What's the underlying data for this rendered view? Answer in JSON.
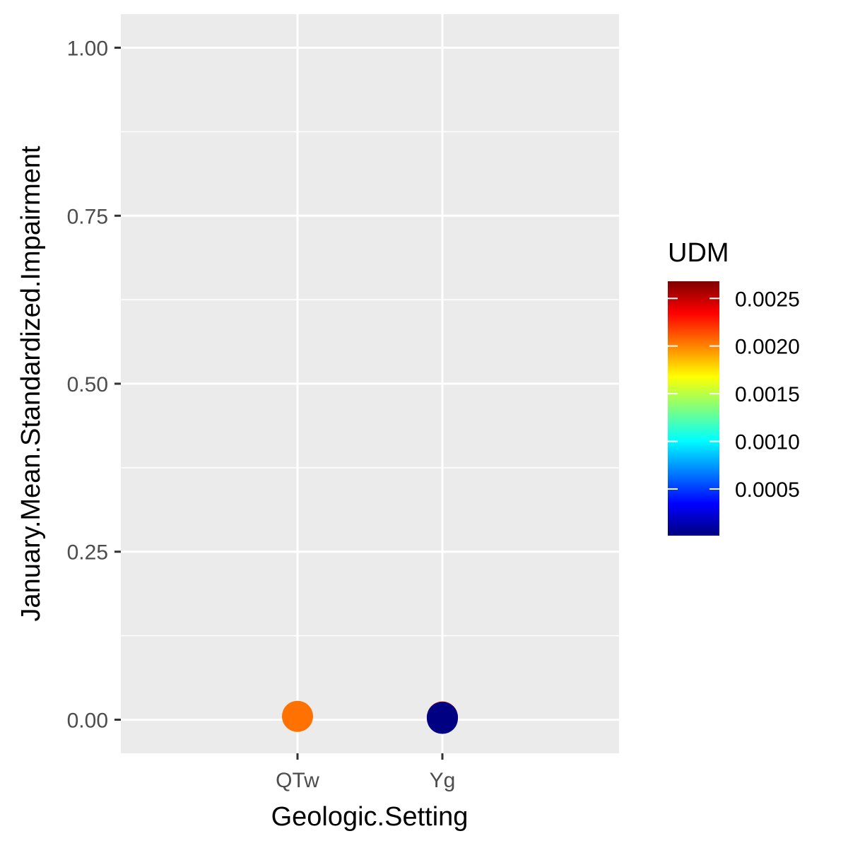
{
  "chart_data": {
    "type": "scatter",
    "xlabel": "Geologic.Setting",
    "ylabel": "January.Mean.Standardized.Impairment",
    "categories": [
      "QTw",
      "Yg"
    ],
    "ylim": [
      -0.05,
      1.05
    ],
    "y_ticks": [
      "0.00",
      "0.25",
      "0.50",
      "0.75",
      "1.00"
    ],
    "y_tick_values": [
      0,
      0.25,
      0.5,
      0.75,
      1.0
    ],
    "grid": true,
    "legend_position": "right",
    "points": [
      {
        "x": "QTw",
        "y": 0.005,
        "color_value": 0.00205
      },
      {
        "x": "Yg",
        "y": 0.004,
        "color_value": 0.0027
      },
      {
        "x": "Yg",
        "y": 0.003,
        "color_value": 0.0001
      },
      {
        "x": "Yg",
        "y": 0.002,
        "color_value": 2e-05
      }
    ],
    "color_scale": {
      "title": "UDM",
      "min": 1e-05,
      "max": 0.00268,
      "ticks": [
        "0.0005",
        "0.0010",
        "0.0015",
        "0.0020",
        "0.0025"
      ],
      "tick_values": [
        0.0005,
        0.001,
        0.0015,
        0.002,
        0.0025
      ],
      "colors": [
        "#00007f",
        "#0000ff",
        "#007fff",
        "#00ffff",
        "#7fff7f",
        "#ffff00",
        "#ff7f00",
        "#ff0000",
        "#7f0000"
      ]
    },
    "panel_background": "#ebebeb",
    "grid_color": "#ffffff"
  }
}
